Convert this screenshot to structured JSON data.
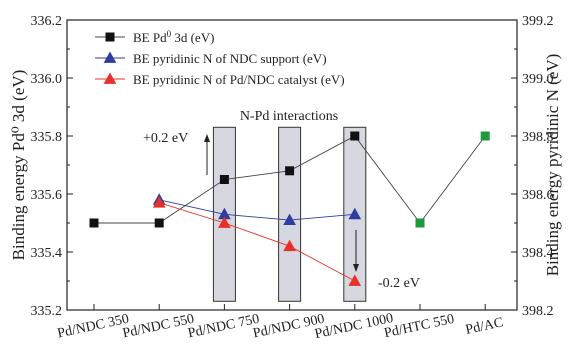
{
  "chart_data": {
    "type": "line",
    "categories": [
      "Pd/NDC 350",
      "Pd/NDC 550",
      "Pd/NDC 750",
      "Pd/NDC 900",
      "Pd/NDC 1000",
      "Pd/HTC 550",
      "Pd/AC"
    ],
    "ylabel_left": "Binding energy Pd⁰ 3d (eV)",
    "ylabel_right": "Binding energy pyridinic N (eV)",
    "ylim_left": [
      335.2,
      336.2
    ],
    "yticks_left": [
      "335.2",
      "335.4",
      "335.6",
      "335.8",
      "336.0",
      "336.2"
    ],
    "ylim_right": [
      398.2,
      399.2
    ],
    "yticks_right": [
      "398.2",
      "398.4",
      "398.6",
      "398.8",
      "399.0",
      "399.2"
    ],
    "series": [
      {
        "name_main": "BE Pd",
        "name_sup": "0",
        "name_rest": " 3d (eV)",
        "axis": "left",
        "marker": "square",
        "color": "#111111",
        "line_color": "#444444",
        "values": [
          335.5,
          335.5,
          335.65,
          335.68,
          335.8,
          335.5,
          335.8
        ],
        "connected_upto": 6,
        "green_marker_indices": [
          5,
          6
        ],
        "green_color": "#1e9a3c"
      },
      {
        "name_main": "BE pyridinic N of NDC support (eV)",
        "axis": "left",
        "marker": "triangle",
        "color": "#2e3d9e",
        "line_color": "#2e3d9e",
        "values": [
          null,
          335.58,
          335.53,
          335.51,
          335.53,
          null,
          null
        ]
      },
      {
        "name_main": "BE pyridinic N of Pd/NDC catalyst (eV)",
        "axis": "left",
        "marker": "triangle",
        "color": "#e8302a",
        "line_color": "#e8302a",
        "values": [
          null,
          335.57,
          335.5,
          335.42,
          335.3,
          null,
          null
        ]
      }
    ],
    "shaded_categories": [
      2,
      3,
      4
    ],
    "shade_range": [
      335.23,
      335.83
    ],
    "shade_color": "#d7d7df",
    "annotations": {
      "region_label": "N-Pd interactions",
      "up_label": "+0.2 eV",
      "down_label": "-0.2 eV"
    },
    "legend_position": "top-left",
    "grid": false
  }
}
